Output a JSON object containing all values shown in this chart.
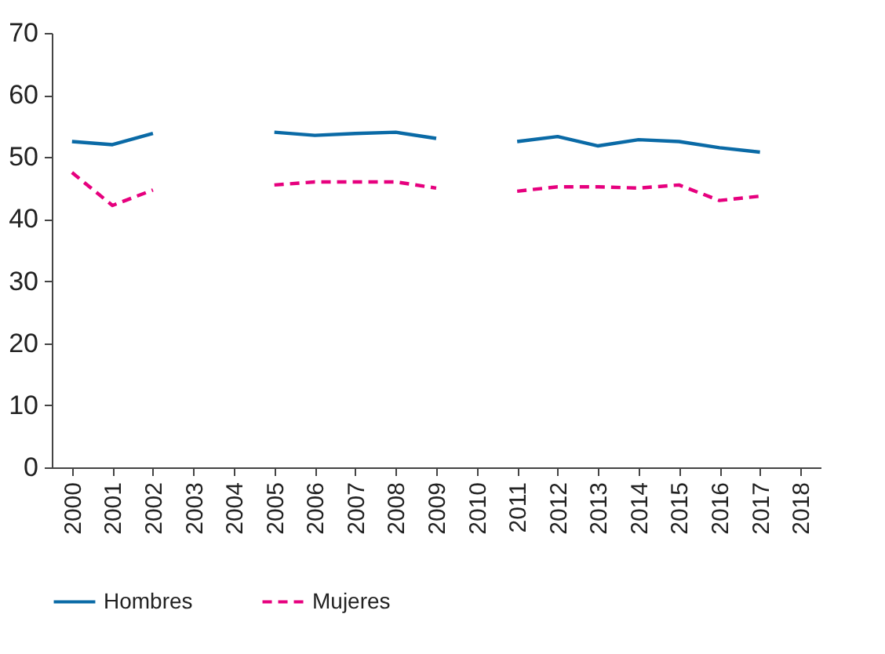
{
  "chart_data": {
    "type": "line",
    "categories": [
      "2000",
      "2001",
      "2002",
      "2003",
      "2004",
      "2005",
      "2006",
      "2007",
      "2008",
      "2009",
      "2010",
      "2011",
      "2012",
      "2013",
      "2014",
      "2015",
      "2016",
      "2017",
      "2018"
    ],
    "series": [
      {
        "name": "Hombres",
        "color": "#0a6aa6",
        "line_style": "solid",
        "values": [
          52.5,
          52,
          53.8,
          null,
          null,
          54,
          53.5,
          53.8,
          54,
          53,
          null,
          52.5,
          53.3,
          51.8,
          52.8,
          52.5,
          51.5,
          50.8,
          null
        ]
      },
      {
        "name": "Mujeres",
        "color": "#e6007e",
        "line_style": "dashed",
        "values": [
          47.5,
          42.2,
          44.7,
          null,
          null,
          45.5,
          46,
          46,
          46,
          45,
          null,
          44.5,
          45.2,
          45.2,
          45,
          45.5,
          43,
          43.7,
          null
        ]
      }
    ],
    "ylim": [
      0,
      70
    ],
    "yticks": [
      0,
      10,
      20,
      30,
      40,
      50,
      60,
      70
    ],
    "grid": false,
    "legend": "bottom",
    "marker": "none"
  }
}
